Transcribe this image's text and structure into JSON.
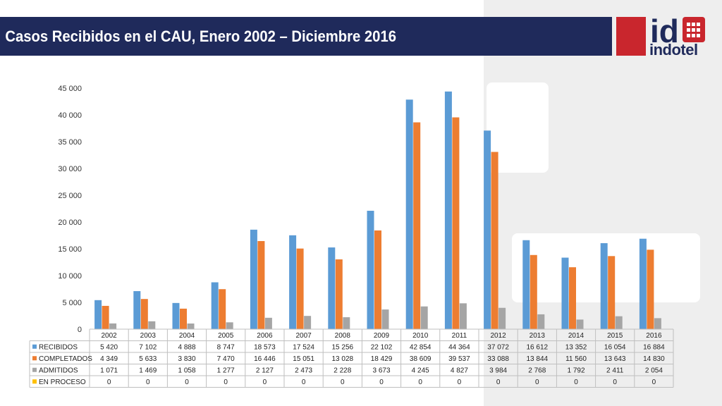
{
  "header": {
    "title": "Casos Recibidos en el CAU, Enero 2002 – Diciembre 2016",
    "logo_mark": "id",
    "logo_word": "indotel"
  },
  "colors": {
    "title_bar": "#1f2a5b",
    "logo_red": "#c9262d",
    "recibidos": "#5b9bd5",
    "completados": "#ed7d31",
    "admitidos": "#a5a5a5",
    "en_proceso": "#ffc000"
  },
  "chart_data": {
    "type": "bar",
    "title": "",
    "xlabel": "",
    "ylabel": "",
    "ylim": [
      0,
      45000
    ],
    "yticks": [
      0,
      5000,
      10000,
      15000,
      20000,
      25000,
      30000,
      35000,
      40000,
      45000
    ],
    "ytick_labels": [
      "0",
      "5 000",
      "10 000",
      "15 000",
      "20 000",
      "25 000",
      "30 000",
      "35 000",
      "40 000",
      "45 000"
    ],
    "grid": false,
    "legend": "data-table",
    "categories": [
      "2002",
      "2003",
      "2004",
      "2005",
      "2006",
      "2007",
      "2008",
      "2009",
      "2010",
      "2011",
      "2012",
      "2013",
      "2014",
      "2015",
      "2016"
    ],
    "series": [
      {
        "name": "RECIBIDOS",
        "color": "#5b9bd5",
        "values": [
          5420,
          7102,
          4888,
          8747,
          18573,
          17524,
          15256,
          22102,
          42854,
          44364,
          37072,
          16612,
          13352,
          16054,
          16884
        ],
        "labels": [
          "5 420",
          "7 102",
          "4 888",
          "8 747",
          "18 573",
          "17 524",
          "15 256",
          "22 102",
          "42 854",
          "44 364",
          "37 072",
          "16 612",
          "13 352",
          "16 054",
          "16 884"
        ]
      },
      {
        "name": "COMPLETADOS",
        "color": "#ed7d31",
        "values": [
          4349,
          5633,
          3830,
          7470,
          16446,
          15051,
          13028,
          18429,
          38609,
          39537,
          33088,
          13844,
          11560,
          13643,
          14830
        ],
        "labels": [
          "4 349",
          "5 633",
          "3 830",
          "7 470",
          "16 446",
          "15 051",
          "13 028",
          "18 429",
          "38 609",
          "39 537",
          "33 088",
          "13 844",
          "11 560",
          "13 643",
          "14 830"
        ]
      },
      {
        "name": "ADMITIDOS",
        "color": "#a5a5a5",
        "values": [
          1071,
          1469,
          1058,
          1277,
          2127,
          2473,
          2228,
          3673,
          4245,
          4827,
          3984,
          2768,
          1792,
          2411,
          2054
        ],
        "labels": [
          "1 071",
          "1 469",
          "1 058",
          "1 277",
          "2 127",
          "2 473",
          "2 228",
          "3 673",
          "4 245",
          "4 827",
          "3 984",
          "2 768",
          "1 792",
          "2 411",
          "2 054"
        ]
      },
      {
        "name": "EN PROCESO",
        "color": "#ffc000",
        "values": [
          0,
          0,
          0,
          0,
          0,
          0,
          0,
          0,
          0,
          0,
          0,
          0,
          0,
          0,
          0
        ],
        "labels": [
          "0",
          "0",
          "0",
          "0",
          "0",
          "0",
          "0",
          "0",
          "0",
          "0",
          "0",
          "0",
          "0",
          "0",
          "0"
        ]
      }
    ]
  }
}
